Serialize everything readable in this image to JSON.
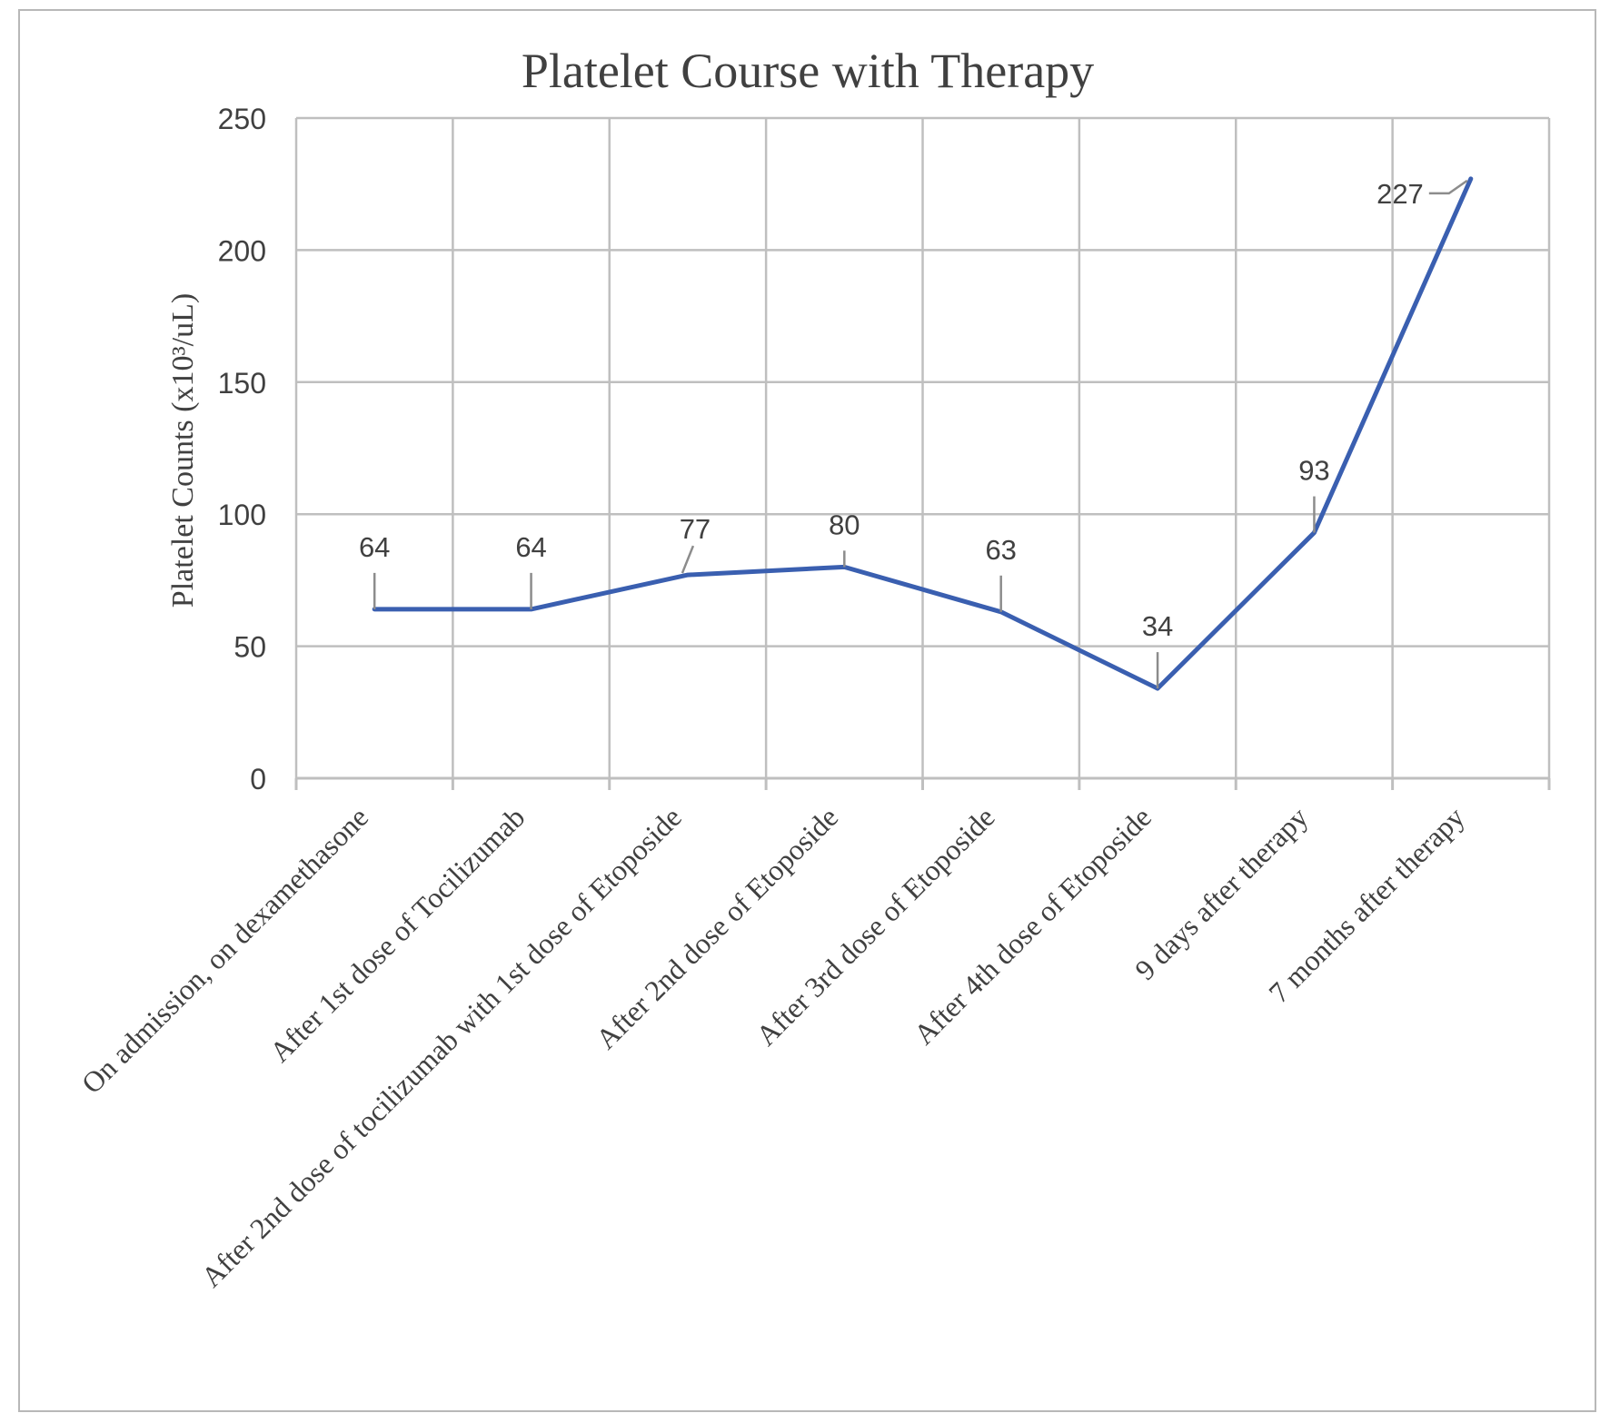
{
  "chart_data": {
    "type": "line",
    "title": "Platelet Course with Therapy",
    "xlabel": "",
    "ylabel": "Platelet Counts (x10³/uL)",
    "ylim": [
      0,
      250
    ],
    "yticks": [
      "0",
      "50",
      "100",
      "150",
      "200",
      "250"
    ],
    "grid": true,
    "legend": "none",
    "categories": [
      "On admission, on dexamethasone",
      "After 1st dose of Tocilizumab",
      "After 2nd dose of tocilizumab  with 1st dose of Etoposide",
      "After 2nd dose of Etoposide",
      "After 3rd dose of Etoposide",
      "After 4th dose of Etoposide",
      "9 days after therapy",
      "7 months after therapy"
    ],
    "series": [
      {
        "values": [
          64,
          64,
          77,
          80,
          63,
          34,
          93,
          227
        ],
        "data_labels": [
          "64",
          "64",
          "77",
          "80",
          "63",
          "34",
          "93",
          "227"
        ],
        "color": "#3a5fb0"
      }
    ],
    "colors": {
      "line": "#3a5fb0",
      "grid": "#bfbfbf",
      "text": "#404040",
      "frame": "#b8b8b8"
    }
  }
}
